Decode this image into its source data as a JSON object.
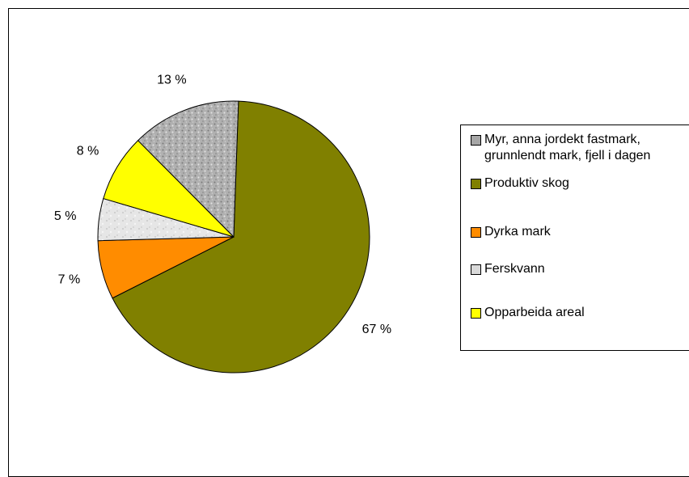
{
  "chart_data": {
    "type": "pie",
    "title": "",
    "slices": [
      {
        "label": "Produktiv skog",
        "value": 67,
        "display": "67 %",
        "color": "#808000",
        "pattern": "none"
      },
      {
        "label": "Dyrka mark",
        "value": 7,
        "display": "7 %",
        "color": "#FF8C00",
        "pattern": "none"
      },
      {
        "label": "Ferskvann",
        "value": 5,
        "display": "5 %",
        "color": "#D9D9D9",
        "pattern": "light-texture"
      },
      {
        "label": "Opparbeida areal",
        "value": 8,
        "display": "8 %",
        "color": "#FFFF00",
        "pattern": "none"
      },
      {
        "label": "Myr, anna jordekt fastmark, grunnlendt mark, fjell i dagen",
        "value": 13,
        "display": "13 %",
        "color": "#A6A6A6",
        "pattern": "granite-texture"
      }
    ],
    "legend": {
      "position": "right",
      "items": [
        {
          "label": "Myr, anna jordekt fastmark,\ngrunnlendt mark, fjell i dagen",
          "color": "#A6A6A6"
        },
        {
          "label": "Produktiv skog",
          "color": "#808000"
        },
        {
          "label": "Dyrka mark",
          "color": "#FF8C00"
        },
        {
          "label": "Ferskvann",
          "color": "#D9D9D9"
        },
        {
          "label": "Opparbeida areal",
          "color": "#FFFF00"
        }
      ]
    }
  }
}
